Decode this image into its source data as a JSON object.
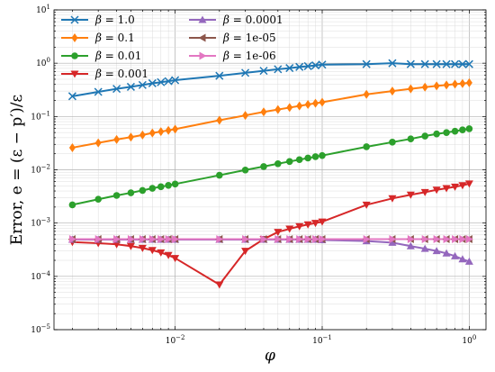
{
  "chart_data": {
    "type": "line",
    "xlabel": "φ",
    "ylabel": "Error, e = (ε − p′)/ε",
    "x_scale": "log",
    "y_scale": "log",
    "xlim": [
      0.0015,
      1.3
    ],
    "ylim": [
      1e-05,
      10
    ],
    "grid": true,
    "legend_placement": "top-left",
    "legend_columns": 2,
    "x_ticks": [
      {
        "value": 0.01,
        "base": "10",
        "exp": "−2"
      },
      {
        "value": 0.1,
        "base": "10",
        "exp": "−1"
      },
      {
        "value": 1,
        "base": "10",
        "exp": "0"
      }
    ],
    "y_ticks": [
      {
        "value": 1e-05,
        "base": "10",
        "exp": "−5"
      },
      {
        "value": 0.0001,
        "base": "10",
        "exp": "−4"
      },
      {
        "value": 0.001,
        "base": "10",
        "exp": "−3"
      },
      {
        "value": 0.01,
        "base": "10",
        "exp": "−2"
      },
      {
        "value": 0.1,
        "base": "10",
        "exp": "−1"
      },
      {
        "value": 1,
        "base": "10",
        "exp": "0"
      },
      {
        "value": 10,
        "base": "10",
        "exp": "1"
      }
    ],
    "x": [
      0.002,
      0.003,
      0.004,
      0.005,
      0.006,
      0.007,
      0.008,
      0.009,
      0.01,
      0.02,
      0.03,
      0.04,
      0.05,
      0.06,
      0.07,
      0.08,
      0.09,
      0.1,
      0.2,
      0.3,
      0.4,
      0.5,
      0.6,
      0.7,
      0.8,
      0.9,
      1.0
    ],
    "series": [
      {
        "name": "1.0",
        "color": "#1f77b4",
        "marker": "x",
        "values": [
          0.24,
          0.29,
          0.33,
          0.36,
          0.39,
          0.42,
          0.44,
          0.46,
          0.48,
          0.58,
          0.66,
          0.72,
          0.77,
          0.81,
          0.85,
          0.88,
          0.91,
          0.94,
          0.96,
          1.0,
          0.96,
          0.96,
          0.96,
          0.96,
          0.96,
          0.96,
          0.96
        ]
      },
      {
        "name": "0.1",
        "color": "#ff7f0e",
        "marker": "diamond",
        "values": [
          0.026,
          0.032,
          0.037,
          0.041,
          0.045,
          0.049,
          0.052,
          0.055,
          0.058,
          0.085,
          0.105,
          0.122,
          0.135,
          0.147,
          0.158,
          0.168,
          0.177,
          0.185,
          0.26,
          0.3,
          0.33,
          0.355,
          0.375,
          0.39,
          0.405,
          0.415,
          0.43
        ]
      },
      {
        "name": "0.01",
        "color": "#2ca02c",
        "marker": "circle",
        "values": [
          0.0022,
          0.0028,
          0.0033,
          0.0037,
          0.0041,
          0.0045,
          0.0048,
          0.0051,
          0.0054,
          0.0079,
          0.0099,
          0.0115,
          0.013,
          0.0143,
          0.0155,
          0.0166,
          0.0176,
          0.0185,
          0.027,
          0.033,
          0.038,
          0.043,
          0.047,
          0.05,
          0.053,
          0.056,
          0.059
        ]
      },
      {
        "name": "0.001",
        "color": "#d62728",
        "marker": "triangle-down",
        "values": [
          0.00044,
          0.00042,
          0.0004,
          0.00037,
          0.00034,
          0.00031,
          0.00028,
          0.00025,
          0.00022,
          7e-05,
          0.0003,
          0.0005,
          0.00068,
          0.00078,
          0.00087,
          0.00094,
          0.001,
          0.00106,
          0.0022,
          0.0029,
          0.0034,
          0.0038,
          0.0042,
          0.0045,
          0.0048,
          0.0051,
          0.0055
        ]
      },
      {
        "name": "0.0001",
        "color": "#9467bd",
        "marker": "triangle-up",
        "values": [
          0.00049,
          0.00049,
          0.00049,
          0.00049,
          0.00049,
          0.00049,
          0.00049,
          0.00049,
          0.00049,
          0.00049,
          0.00049,
          0.00049,
          0.00049,
          0.00049,
          0.00049,
          0.00049,
          0.00049,
          0.00048,
          0.00046,
          0.00043,
          0.00037,
          0.00033,
          0.0003,
          0.00027,
          0.00024,
          0.00021,
          0.00019
        ]
      },
      {
        "name": "1e-05",
        "color": "#8c564b",
        "marker": "triangle-left",
        "values": [
          0.0005,
          0.0005,
          0.0005,
          0.0005,
          0.0005,
          0.0005,
          0.0005,
          0.0005,
          0.0005,
          0.0005,
          0.0005,
          0.0005,
          0.0005,
          0.0005,
          0.0005,
          0.0005,
          0.0005,
          0.0005,
          0.0005,
          0.0005,
          0.0005,
          0.0005,
          0.0005,
          0.0005,
          0.0005,
          0.0005,
          0.0005
        ]
      },
      {
        "name": "1e-06",
        "color": "#e377c2",
        "marker": "triangle-right",
        "values": [
          0.0005,
          0.0005,
          0.0005,
          0.0005,
          0.0005,
          0.0005,
          0.0005,
          0.0005,
          0.0005,
          0.0005,
          0.0005,
          0.0005,
          0.0005,
          0.0005,
          0.0005,
          0.0005,
          0.0005,
          0.0005,
          0.0005,
          0.0005,
          0.0005,
          0.0005,
          0.0005,
          0.0005,
          0.0005,
          0.0005,
          0.0005
        ]
      }
    ]
  }
}
